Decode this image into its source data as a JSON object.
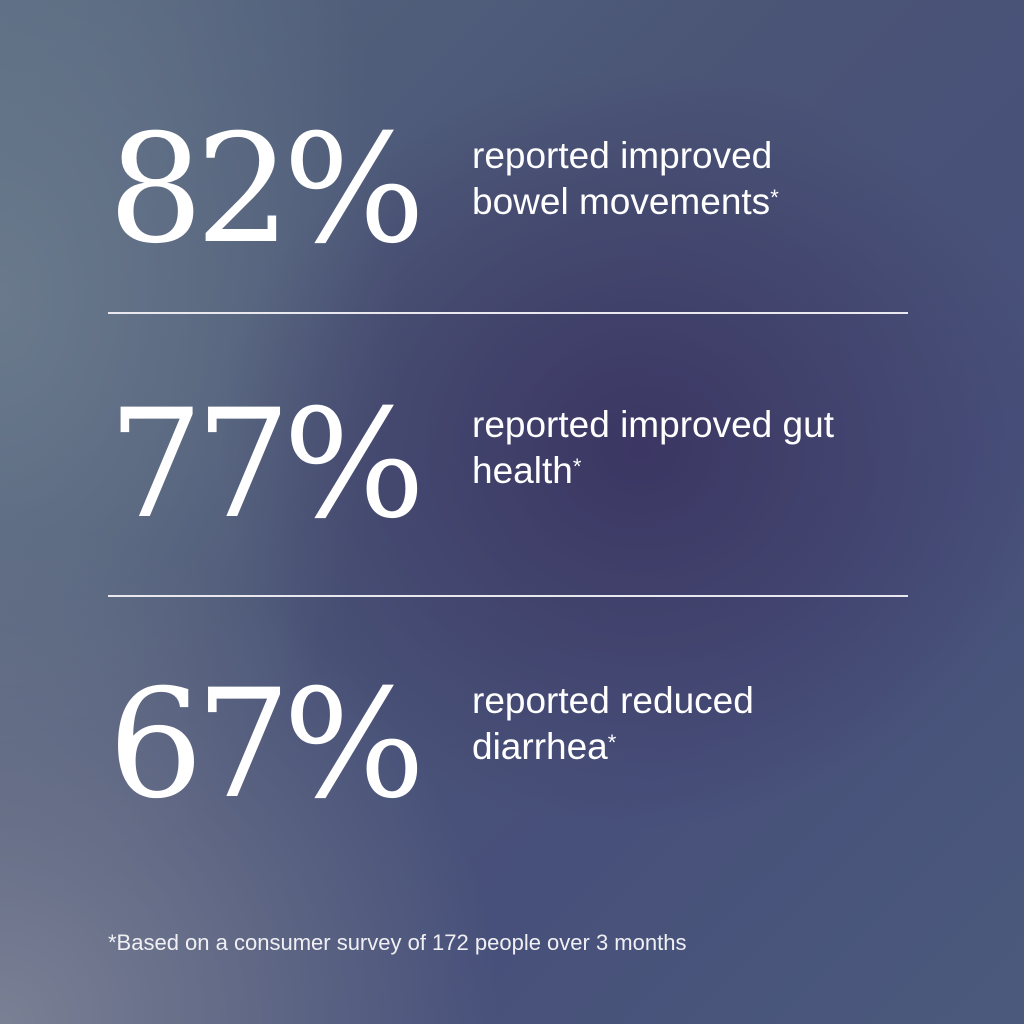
{
  "stats": [
    {
      "value": "82%",
      "text": "reported improved bowel movements",
      "mark": "*"
    },
    {
      "value": "77%",
      "text": "reported improved gut health",
      "mark": "*"
    },
    {
      "value": "67%",
      "text": "reported reduced diarrhea",
      "mark": "*"
    }
  ],
  "footnote": "*Based on a consumer survey of 172 people over 3 months",
  "colors": {
    "text": "#ffffff",
    "background": "#47507a"
  }
}
